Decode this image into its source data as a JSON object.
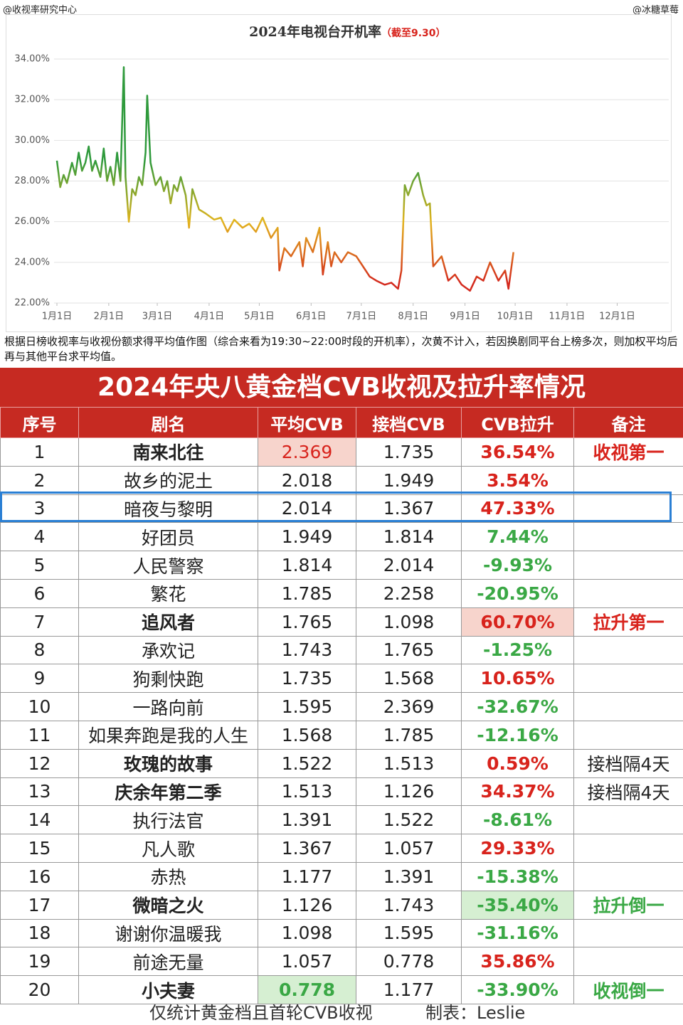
{
  "header": {
    "left": "@收视率研究中心",
    "right": "@冰糖草莓"
  },
  "chart_data": {
    "type": "line",
    "title": "2024年电视台开机率",
    "subtitle": "（截至9.30）",
    "x": [
      1,
      3,
      5,
      7,
      10,
      12,
      14,
      16,
      18,
      20,
      22,
      24,
      27,
      29,
      31,
      33,
      35,
      37,
      39,
      41,
      42,
      44,
      46,
      48,
      50,
      52,
      54,
      55,
      57,
      60,
      63,
      65,
      67,
      69,
      71,
      73,
      75,
      78,
      80,
      82,
      86,
      90,
      95,
      99,
      103,
      107,
      112,
      116,
      120,
      124,
      129,
      133,
      134,
      137,
      141,
      146,
      148,
      150,
      154,
      158,
      160,
      163,
      165,
      167,
      171,
      175,
      180,
      184,
      188,
      192,
      197,
      201,
      205,
      207,
      209,
      211,
      214,
      217,
      220,
      222,
      224,
      226,
      231,
      235,
      239,
      243,
      248,
      252,
      256,
      260,
      265,
      269,
      271,
      274
    ],
    "values": [
      29.0,
      27.7,
      28.3,
      27.9,
      28.9,
      28.3,
      29.4,
      28.5,
      28.9,
      29.7,
      28.5,
      29.0,
      28.2,
      29.6,
      28.0,
      28.7,
      27.8,
      29.4,
      28.0,
      33.6,
      28.2,
      26.0,
      27.6,
      27.3,
      28.2,
      27.8,
      29.4,
      32.2,
      28.9,
      27.8,
      28.2,
      27.5,
      28.0,
      26.9,
      27.8,
      27.5,
      28.2,
      27.3,
      25.7,
      27.6,
      26.6,
      26.4,
      26.1,
      26.2,
      25.5,
      26.1,
      25.7,
      25.9,
      25.5,
      26.2,
      25.2,
      25.7,
      23.6,
      24.7,
      24.3,
      25.0,
      23.8,
      25.2,
      24.5,
      25.7,
      23.4,
      25.0,
      23.8,
      24.5,
      24.0,
      24.5,
      24.3,
      23.8,
      23.3,
      23.1,
      22.9,
      23.0,
      22.7,
      23.6,
      27.8,
      27.3,
      28.0,
      28.4,
      27.3,
      26.8,
      26.9,
      23.8,
      24.3,
      23.1,
      23.4,
      22.9,
      22.6,
      23.3,
      23.1,
      24.0,
      23.1,
      23.6,
      22.7,
      24.5
    ],
    "xlim": [
      1,
      366
    ],
    "xticks": [
      {
        "value": 1,
        "label": "1月1日"
      },
      {
        "value": 32,
        "label": "2月1日"
      },
      {
        "value": 61,
        "label": "3月1日"
      },
      {
        "value": 92,
        "label": "4月1日"
      },
      {
        "value": 122,
        "label": "5月1日"
      },
      {
        "value": 153,
        "label": "6月1日"
      },
      {
        "value": 183,
        "label": "7月1日"
      },
      {
        "value": 214,
        "label": "8月1日"
      },
      {
        "value": 245,
        "label": "9月1日"
      },
      {
        "value": 275,
        "label": "10月1日"
      },
      {
        "value": 306,
        "label": "11月1日"
      },
      {
        "value": 336,
        "label": "12月1日"
      }
    ],
    "ylim": [
      22,
      34
    ],
    "yticks": [
      {
        "value": 22,
        "label": "22.00%"
      },
      {
        "value": 24,
        "label": "24.00%"
      },
      {
        "value": 26,
        "label": "26.00%"
      },
      {
        "value": 28,
        "label": "28.00%"
      },
      {
        "value": 30,
        "label": "30.00%"
      },
      {
        "value": 32,
        "label": "32.00%"
      },
      {
        "value": 34,
        "label": "34.00%"
      }
    ],
    "grid": true,
    "gradient": [
      {
        "value": 23,
        "color": "#d42a1e"
      },
      {
        "value": 26,
        "color": "#e2b41e"
      },
      {
        "value": 29,
        "color": "#2f9a3c"
      }
    ]
  },
  "note": "根据日榜收视率与收视份额求得平均值作图（综合来看为19:30~22:00时段的开机率），次黄不计入，若因换剧同平台上榜多次，则加权平均后再与其他平台求平均值。",
  "table": {
    "title": "2024年央八黄金档CVB收视及拉升率情况",
    "header": [
      "序号",
      "剧名",
      "平均CVB",
      "接档CVB",
      "CVB拉升",
      "备注"
    ],
    "rows": [
      [
        "1",
        "南来北往",
        "2.369",
        "1.735",
        "36.54%",
        "收视第一"
      ],
      [
        "2",
        "故乡的泥土",
        "2.018",
        "1.949",
        "3.54%"
      ],
      [
        "3",
        "暗夜与黎明",
        "2.014",
        "1.367",
        "47.33%"
      ],
      [
        "4",
        "好团员",
        "1.949",
        "1.814",
        "7.44%"
      ],
      [
        "5",
        "人民警察",
        "1.814",
        "2.014",
        "-9.93%"
      ],
      [
        "6",
        "繁花",
        "1.785",
        "2.258",
        "-20.95%"
      ],
      [
        "7",
        "追风者",
        "1.765",
        "1.098",
        "60.70%",
        "拉升第一"
      ],
      [
        "8",
        "承欢记",
        "1.743",
        "1.765",
        "-1.25%"
      ],
      [
        "9",
        "狗剩快跑",
        "1.735",
        "1.568",
        "10.65%"
      ],
      [
        "10",
        "一路向前",
        "1.595",
        "2.369",
        "-32.67%"
      ],
      [
        "11",
        "如果奔跑是我的人生",
        "1.568",
        "1.785",
        "-12.16%"
      ],
      [
        "12",
        "玫瑰的故事",
        "1.522",
        "1.513",
        "0.59%",
        "接档隔4天"
      ],
      [
        "13",
        "庆余年第二季",
        "1.513",
        "1.126",
        "34.37%",
        "接档隔4天"
      ],
      [
        "14",
        "执行法官",
        "1.391",
        "1.522",
        "-8.61%"
      ],
      [
        "15",
        "凡人歌",
        "1.367",
        "1.057",
        "29.33%"
      ],
      [
        "16",
        "赤热",
        "1.177",
        "1.391",
        "-15.38%"
      ],
      [
        "17",
        "微暗之火",
        "1.126",
        "1.743",
        "-35.40%",
        "拉升倒一"
      ],
      [
        "18",
        "谢谢你温暖我",
        "1.098",
        "1.595",
        "-31.16%"
      ],
      [
        "19",
        "前途无量",
        "1.057",
        "0.778",
        "35.86%"
      ],
      [
        "20",
        "小夫妻",
        "0.778",
        "1.177",
        "-33.90%",
        "收视倒一"
      ]
    ],
    "footer": "仅统计黄金档且首轮CVB收视",
    "maker": "制表：Leslie"
  }
}
